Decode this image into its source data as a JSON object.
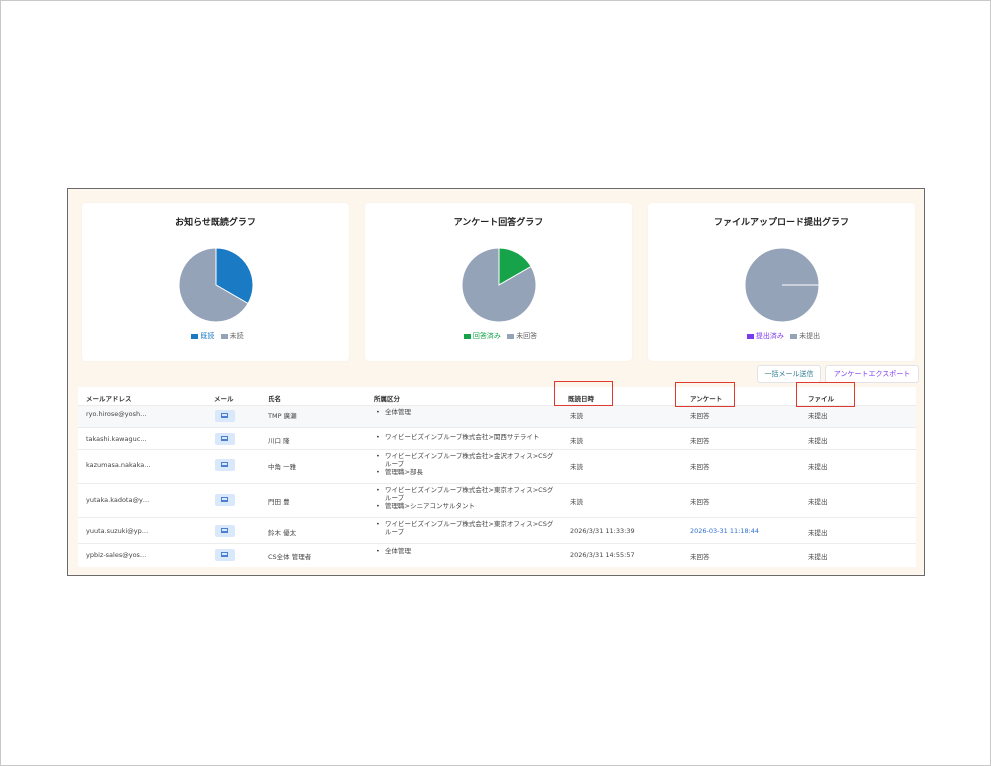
{
  "charts": [
    {
      "title": "お知らせ既読グラフ",
      "legend": [
        {
          "label": "既読",
          "color": "#1a7bc4"
        },
        {
          "label": "未読",
          "color": "#94a3b8"
        }
      ]
    },
    {
      "title": "アンケート回答グラフ",
      "legend": [
        {
          "label": "回答済み",
          "color": "#16a34a"
        },
        {
          "label": "未回答",
          "color": "#94a3b8"
        }
      ]
    },
    {
      "title": "ファイルアップロード提出グラフ",
      "legend": [
        {
          "label": "提出済み",
          "color": "#7c3aed"
        },
        {
          "label": "未提出",
          "color": "#94a3b8"
        }
      ]
    }
  ],
  "chart_data": [
    {
      "type": "pie",
      "title": "お知らせ既読グラフ",
      "labels": [
        "既読",
        "未読"
      ],
      "values": [
        2,
        4
      ],
      "colors": [
        "#1a7bc4",
        "#94a3b8"
      ]
    },
    {
      "type": "pie",
      "title": "アンケート回答グラフ",
      "labels": [
        "回答済み",
        "未回答"
      ],
      "values": [
        1,
        5
      ],
      "colors": [
        "#16a34a",
        "#94a3b8"
      ]
    },
    {
      "type": "pie",
      "title": "ファイルアップロード提出グラフ",
      "labels": [
        "提出済み",
        "未提出"
      ],
      "values": [
        0,
        6
      ],
      "colors": [
        "#7c3aed",
        "#94a3b8"
      ]
    }
  ],
  "actions": {
    "bulk_mail": "一括メール送信",
    "export_survey": "アンケートエクスポート"
  },
  "table": {
    "headers": {
      "email": "メールアドレス",
      "mail": "メール",
      "name": "氏名",
      "dept": "所属区分",
      "read_at": "既読日時",
      "survey": "アンケート",
      "file": "ファイル"
    },
    "rows": [
      {
        "email": "ryo.hirose@yosh…",
        "name": "TMP 廣瀬",
        "dept": [
          "全体管理"
        ],
        "read_at": "未読",
        "survey": "未回答",
        "file": "未提出"
      },
      {
        "email": "takashi.kawaguc…",
        "name": "川口 隆",
        "dept": [
          "ワイビービズインプループ株式会社>関西サテライト"
        ],
        "read_at": "未読",
        "survey": "未回答",
        "file": "未提出"
      },
      {
        "email": "kazumasa.nakaka…",
        "name": "中角 一雅",
        "dept": [
          "ワイビービズインプループ株式会社>金沢オフィス>CSグループ",
          "管理職>部長"
        ],
        "read_at": "未読",
        "survey": "未回答",
        "file": "未提出"
      },
      {
        "email": "yutaka.kadota@y…",
        "name": "門田 豊",
        "dept": [
          "ワイビービズインプループ株式会社>東京オフィス>CSグループ",
          "管理職>シニアコンサルタント"
        ],
        "read_at": "未読",
        "survey": "未回答",
        "file": "未提出"
      },
      {
        "email": "yuuta.suzuki@yp…",
        "name": "鈴木 優太",
        "dept": [
          "ワイビービズインプループ株式会社>東京オフィス>CSグループ"
        ],
        "read_at": "2026/3/31 11:33:39",
        "survey": "2026-03-31 11:18:44",
        "file": "未提出"
      },
      {
        "email": "ypbiz-sales@yos…",
        "name": "CS全体 管理者",
        "dept": [
          "全体管理"
        ],
        "read_at": "2026/3/31 14:55:57",
        "survey": "未回答",
        "file": "未提出"
      }
    ]
  }
}
